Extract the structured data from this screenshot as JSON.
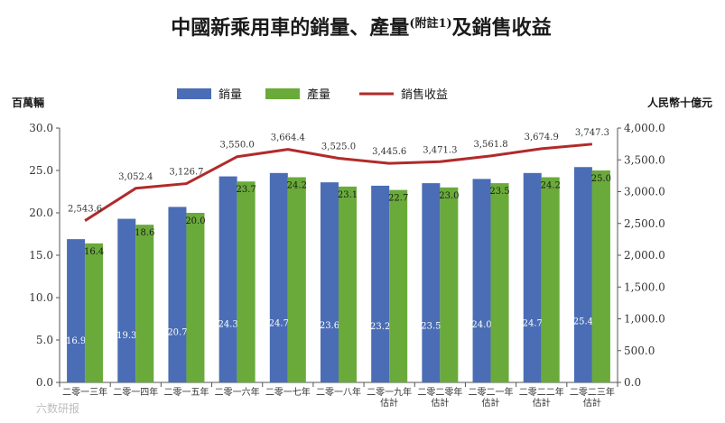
{
  "chart_data": {
    "type": "bar",
    "title": "中國新乘用車的銷量、產量",
    "title_note": "(附註1)",
    "title_suffix": "及銷售收益",
    "y_left_label": "百萬輛",
    "y_right_label": "人民幣十億元",
    "y_left_lim": [
      0,
      30
    ],
    "y_left_ticks": [
      "0.0",
      "5.0",
      "10.0",
      "15.0",
      "20.0",
      "25.0",
      "30.0"
    ],
    "y_right_lim": [
      0,
      4000
    ],
    "y_right_ticks": [
      "0.0",
      "500.0",
      "1,000.0",
      "1,500.0",
      "2,000.0",
      "2,500.0",
      "3,000.0",
      "3,500.0",
      "4,000.0"
    ],
    "legend_position": "top-center",
    "categories": [
      [
        "二零一三年"
      ],
      [
        "二零一四年"
      ],
      [
        "二零一五年"
      ],
      [
        "二零一六年"
      ],
      [
        "二零一七年"
      ],
      [
        "二零一八年"
      ],
      [
        "二零一九年",
        "估計"
      ],
      [
        "二零二零年",
        "估計"
      ],
      [
        "二零二一年",
        "估計"
      ],
      [
        "二零二二年",
        "估計"
      ],
      [
        "二零二三年",
        "估計"
      ]
    ],
    "series": [
      {
        "name": "銷量",
        "kind": "bar",
        "axis": "left",
        "color": "#4a6db5",
        "values": [
          16.9,
          19.3,
          20.7,
          24.3,
          24.7,
          23.6,
          23.2,
          23.5,
          24.0,
          24.7,
          25.4
        ],
        "labels": [
          "16.9",
          "19.3",
          "20.7",
          "24.3",
          "24.7",
          "23.6",
          "23.2",
          "23.5",
          "24.0",
          "24.7",
          "25.4"
        ]
      },
      {
        "name": "產量",
        "kind": "bar",
        "axis": "left",
        "color": "#6aaa3a",
        "values": [
          16.4,
          18.6,
          20.0,
          23.7,
          24.2,
          23.1,
          22.7,
          23.0,
          23.5,
          24.2,
          25.0
        ],
        "labels": [
          "16.4",
          "18.6",
          "20.0",
          "23.7",
          "24.2",
          "23.1",
          "22.7",
          "23.0",
          "23.5",
          "24.2",
          "25.0"
        ]
      },
      {
        "name": "銷售收益",
        "kind": "line",
        "axis": "right",
        "color": "#b22a2a",
        "values": [
          2543.6,
          3052.4,
          3126.7,
          3550.0,
          3664.4,
          3525.0,
          3445.6,
          3471.3,
          3561.8,
          3674.9,
          3747.3
        ],
        "labels": [
          "2,543.6",
          "3,052.4",
          "3,126.7",
          "3,550.0",
          "3,664.4",
          "3,525.0",
          "3,445.6",
          "3,471.3",
          "3,561.8",
          "3,674.9",
          "3,747.3"
        ]
      }
    ],
    "grid": false
  },
  "watermark": "六数研报"
}
